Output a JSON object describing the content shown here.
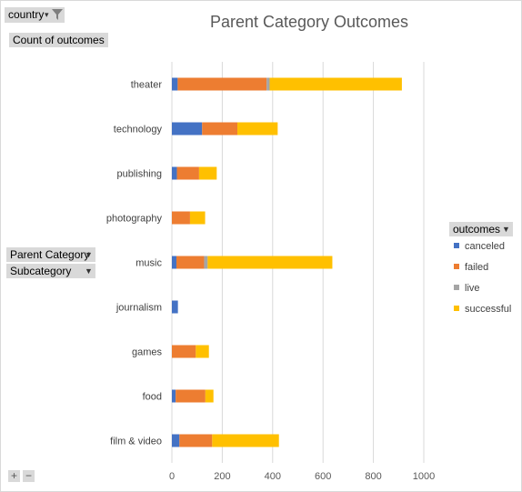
{
  "filters": {
    "country_label": "country",
    "values_label": "Count of outcomes",
    "row_fields": [
      "Parent Category",
      "Subcategory"
    ],
    "legend_header": "outcomes"
  },
  "zoom": {
    "expand": "+",
    "collapse": "−"
  },
  "colors": {
    "canceled": "#4472c4",
    "failed": "#ed7d31",
    "live": "#a5a5a5",
    "successful": "#ffc000"
  },
  "chart_data": {
    "type": "bar",
    "orientation": "horizontal",
    "stacked": true,
    "title": "Parent Category Outcomes",
    "xlabel": "",
    "ylabel": "",
    "xlim": [
      0,
      1000
    ],
    "xticks": [
      0,
      200,
      400,
      600,
      800,
      1000
    ],
    "grid": "vertical",
    "legend_position": "right",
    "categories": [
      "theater",
      "technology",
      "publishing",
      "photography",
      "music",
      "journalism",
      "games",
      "food",
      "film & video"
    ],
    "series": [
      {
        "name": "canceled",
        "values": [
          23,
          120,
          20,
          0,
          18,
          24,
          0,
          15,
          30
        ]
      },
      {
        "name": "failed",
        "values": [
          353,
          140,
          88,
          72,
          110,
          0,
          95,
          118,
          130
        ]
      },
      {
        "name": "live",
        "values": [
          12,
          0,
          0,
          0,
          14,
          0,
          0,
          0,
          0
        ]
      },
      {
        "name": "successful",
        "values": [
          525,
          160,
          70,
          60,
          495,
          0,
          52,
          32,
          265
        ]
      }
    ]
  }
}
